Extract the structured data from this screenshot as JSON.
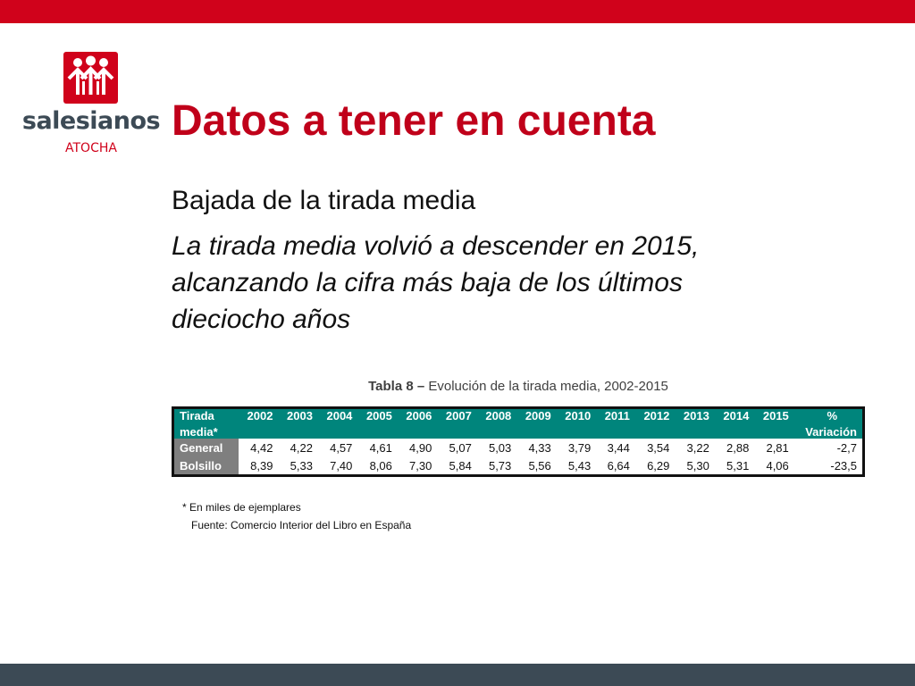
{
  "brand": {
    "name": "salesianos",
    "sub": "ATOCHA",
    "accent": "#d0021b",
    "dark": "#3c4a55"
  },
  "slide": {
    "title": "Datos a tener en cuenta",
    "subtitle": "Bajada de la tirada media",
    "paragraph": "La tirada media volvió a descender en 2015, alcanzando la cifra más baja de los últimos dieciocho años"
  },
  "table": {
    "caption_prefix": "Tabla  8 – ",
    "caption_text": "Evolución de la tirada media, 2002-2015",
    "header_first_line1": "Tirada",
    "header_first_line2": "media*",
    "years": [
      "2002",
      "2003",
      "2004",
      "2005",
      "2006",
      "2007",
      "2008",
      "2009",
      "2010",
      "2011",
      "2012",
      "2013",
      "2014",
      "2015"
    ],
    "header_last_line1": "%",
    "header_last_line2": "Variación",
    "rows": [
      {
        "label": "General",
        "values": [
          "4,42",
          "4,22",
          "4,57",
          "4,61",
          "4,90",
          "5,07",
          "5,03",
          "4,33",
          "3,79",
          "3,44",
          "3,54",
          "3,22",
          "2,88",
          "2,81"
        ],
        "variation": "-2,7"
      },
      {
        "label": "Bolsillo",
        "values": [
          "8,39",
          "5,33",
          "7,40",
          "8,06",
          "7,30",
          "5,84",
          "5,73",
          "5,56",
          "5,43",
          "6,64",
          "6,29",
          "5,30",
          "5,31",
          "4,06"
        ],
        "variation": "-23,5"
      }
    ],
    "footnote": "* En miles de ejemplares",
    "source": "Fuente: Comercio Interior del Libro en España",
    "header_color": "#00857c",
    "rowhead_color": "#7f7f7f"
  }
}
